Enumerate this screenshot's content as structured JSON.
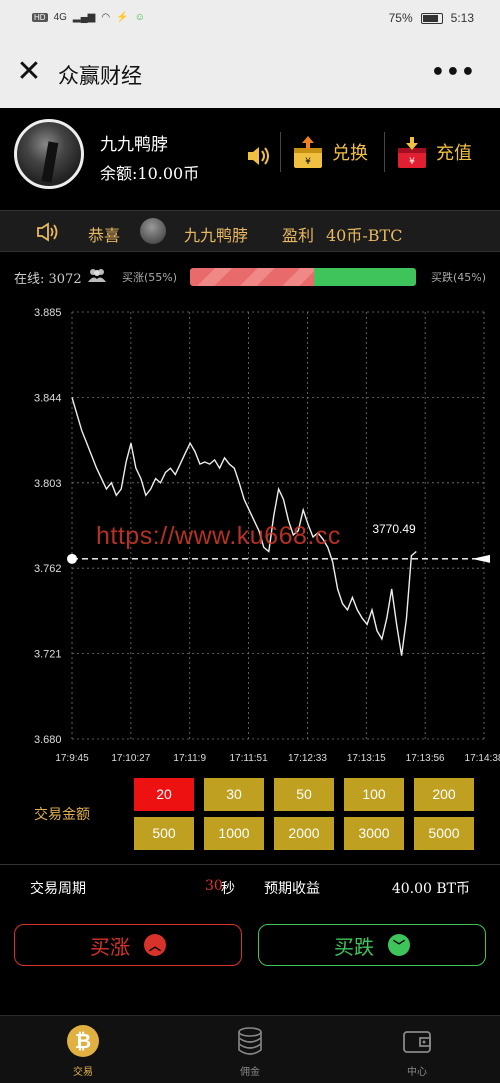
{
  "status": {
    "network": "4G",
    "battery": "75%",
    "time": "5:13"
  },
  "titlebar": {
    "title": "众赢财经",
    "more": "•••"
  },
  "user": {
    "name": "九九鸭脖",
    "balance": "余额:10.00币"
  },
  "actions": {
    "exchange": "兑换",
    "recharge": "充值"
  },
  "ticker": {
    "congrats": "恭喜",
    "name": "九九鸭脖",
    "profit_label": "盈利",
    "profit_value": "40币-BTC"
  },
  "market": {
    "online": "在线: 3072",
    "rise_label": "买涨(55%)",
    "fall_label": "买跌(45%)",
    "rise_fraction": 0.55
  },
  "chart_data": {
    "type": "line",
    "y_ticks": [
      "3.885",
      "3.844",
      "3.803",
      "3.762",
      "3.721",
      "3.680"
    ],
    "x_ticks": [
      "17:9:45",
      "17:10:27",
      "17:11:9",
      "17:11:51",
      "17:12:33",
      "17:13:15",
      "17:13:56",
      "17:14:38"
    ],
    "ylim": [
      3.68,
      3.885
    ],
    "current_value_label": "3770.49",
    "current_y": 3.7665,
    "grid": true,
    "series": [
      {
        "values": [
          3.844,
          3.836,
          3.828,
          3.822,
          3.816,
          3.81,
          3.805,
          3.8,
          3.803,
          3.797,
          3.8,
          3.813,
          3.822,
          3.81,
          3.805,
          3.797,
          3.8,
          3.805,
          3.803,
          3.808,
          3.81,
          3.807,
          3.812,
          3.817,
          3.822,
          3.818,
          3.812,
          3.813,
          3.812,
          3.814,
          3.81,
          3.815,
          3.812,
          3.81,
          3.803,
          3.795,
          3.79,
          3.785,
          3.78,
          3.772,
          3.77,
          3.787,
          3.8,
          3.795,
          3.785,
          3.778,
          3.78,
          3.79,
          3.783,
          3.777,
          3.779,
          3.776,
          3.772,
          3.765,
          3.752,
          3.745,
          3.742,
          3.748,
          3.742,
          3.738,
          3.735,
          3.742,
          3.732,
          3.728,
          3.738,
          3.752,
          3.735,
          3.72,
          3.738,
          3.768,
          3.77
        ]
      }
    ]
  },
  "watermark": "https://www.ku668.cc",
  "amount": {
    "label": "交易金额",
    "values": [
      "20",
      "30",
      "50",
      "100",
      "200",
      "500",
      "1000",
      "2000",
      "3000",
      "5000"
    ],
    "selected": "20"
  },
  "period": {
    "label": "交易周期",
    "value": "30",
    "unit": "秒",
    "income_label": "预期收益",
    "income_value": "40.00 BT币"
  },
  "buttons": {
    "buy_rise": "买涨",
    "buy_fall": "买跌"
  },
  "tabs": {
    "trade": "交易",
    "commission": "佣金",
    "center": "中心"
  },
  "colors": {
    "rise": "#d8332a",
    "fall": "#3ec45a",
    "gold": "#bfa020",
    "selected": "#ee1111"
  }
}
